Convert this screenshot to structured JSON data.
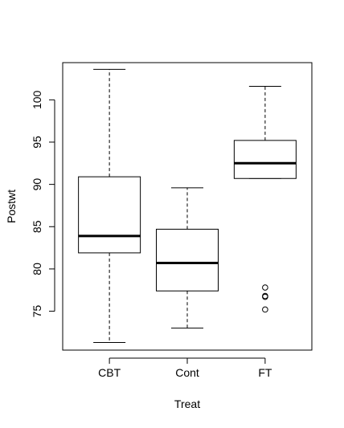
{
  "chart_data": {
    "type": "box",
    "xlabel": "Treat",
    "ylabel": "Postwt",
    "ylim": [
      70.4,
      104.4
    ],
    "yticks": [
      75,
      80,
      85,
      90,
      95,
      100
    ],
    "grid": false,
    "series": [
      {
        "name": "CBT",
        "whisker_low": 71.3,
        "q1": 81.9,
        "median": 83.9,
        "q3": 90.9,
        "whisker_high": 103.6,
        "outliers": []
      },
      {
        "name": "Cont",
        "whisker_low": 73.0,
        "q1": 77.4,
        "median": 80.7,
        "q3": 84.7,
        "whisker_high": 89.6,
        "outliers": []
      },
      {
        "name": "FT",
        "whisker_low": 90.7,
        "q1": 90.7,
        "median": 92.5,
        "q3": 95.2,
        "whisker_high": 101.6,
        "outliers": [
          77.8,
          76.8,
          76.7,
          75.2
        ]
      }
    ]
  }
}
